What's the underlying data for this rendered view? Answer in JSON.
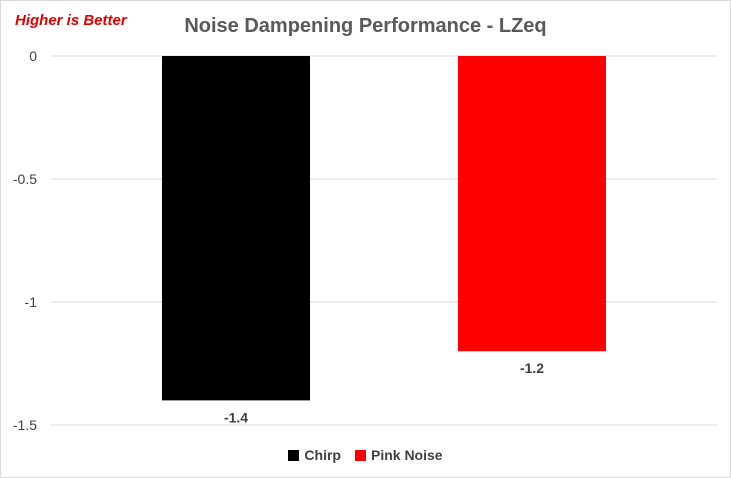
{
  "note": "Higher is Better",
  "chart_data": {
    "type": "bar",
    "title": "Noise Dampening Performance - LZeq",
    "categories": [
      ""
    ],
    "series": [
      {
        "name": "Chirp",
        "values": [
          -1.4
        ],
        "color": "#000000"
      },
      {
        "name": "Pink Noise",
        "values": [
          -1.2
        ],
        "color": "#ff0000"
      }
    ],
    "ylim": [
      -1.5,
      0
    ],
    "yticks": [
      0,
      -0.5,
      -1,
      -1.5
    ],
    "ytick_labels": [
      "0",
      "-0.5",
      "-1",
      "-1.5"
    ],
    "data_labels": [
      "-1.4",
      "-1.2"
    ],
    "grid": true,
    "legend": "bottom",
    "xlabel": "",
    "ylabel": ""
  }
}
